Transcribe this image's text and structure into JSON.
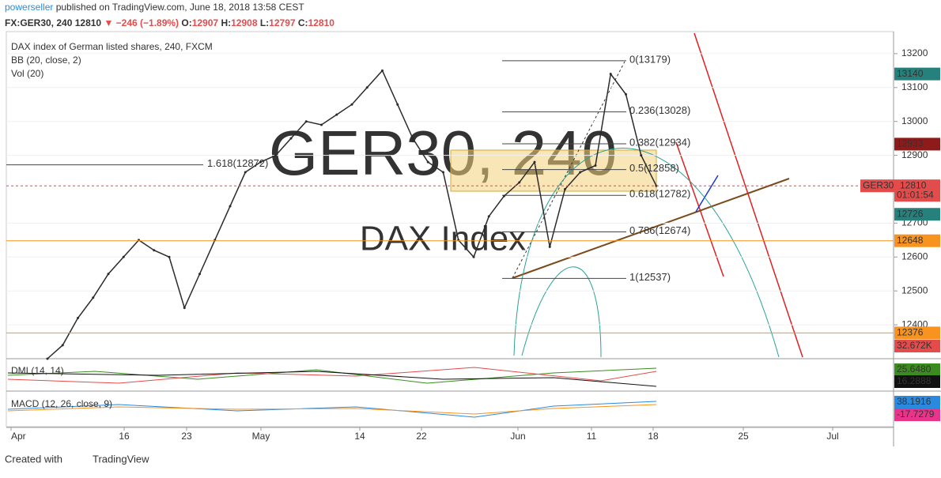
{
  "header": {
    "author": "powerseller",
    "published": "published on TradingView.com, June 18, 2018 13:58 CEST",
    "symbol": "FX:GER30, 240",
    "last": "12810",
    "change": "▼ −246 (−1.89%)",
    "ohlc": [
      {
        "key": "O:",
        "value": "12907"
      },
      {
        "key": "H:",
        "value": "12908"
      },
      {
        "key": "L:",
        "value": "12797"
      },
      {
        "key": "C:",
        "value": "12810"
      }
    ]
  },
  "legend": [
    "DAX index of German listed shares, 240, FXCM",
    "BB (20, close, 2)",
    "Vol (20)"
  ],
  "panes": [
    "DMI (14, 14)",
    "MACD (12, 26, close, 9)"
  ],
  "watermark": {
    "symbol": "GER30, 240",
    "name": "DAX Index"
  },
  "chart_data": {
    "type": "line",
    "color": "#2b2b2b",
    "ylim": [
      12300,
      13265
    ],
    "yticks": [
      13200,
      13100,
      13000,
      12900,
      12700,
      12600,
      12500,
      12400
    ],
    "values": [
      12300,
      12340,
      12420,
      12480,
      12550,
      12600,
      12650,
      12620,
      12600,
      12450,
      12550,
      12650,
      12750,
      12850,
      12880,
      12900,
      12950,
      13000,
      12990,
      13020,
      13050,
      13100,
      13150,
      13050,
      12950,
      12880,
      12850,
      12650,
      12600,
      12720,
      12780,
      12820,
      12880,
      12630,
      12800,
      12850,
      12870,
      13140,
      13080,
      12900,
      12810
    ],
    "x_labels": [
      "Apr",
      "16",
      "23",
      "May",
      "14",
      "22",
      "Jun",
      "11",
      "18",
      "25",
      "Jul"
    ],
    "fib": [
      {
        "label": "0(13179)",
        "value": 13179
      },
      {
        "label": "0.236(13028)",
        "value": 13028
      },
      {
        "label": "0.382(12934)",
        "value": 12934
      },
      {
        "label": "0.5(12858)",
        "value": 12858
      },
      {
        "label": "0.618(12782)",
        "value": 12782
      },
      {
        "label": "0.786(12674)",
        "value": 12674
      },
      {
        "label": "1(12537)",
        "value": 12537
      },
      {
        "label": "1.618(12872)",
        "value": 12872
      }
    ],
    "price_badges": [
      {
        "text": "13140",
        "value": 13140,
        "color": "#26817d",
        "line": "none"
      },
      {
        "text": "12933",
        "value": 12933,
        "color": "#8e1a1a",
        "line": "none"
      },
      {
        "text": "GER30",
        "value": 12810,
        "color": "#e44b4b",
        "line": "dashed",
        "label": "12810"
      },
      {
        "text": "01:01:54",
        "value": 12782,
        "color": "#e44b4b",
        "line": "none"
      },
      {
        "text": "12726",
        "value": 12726,
        "color": "#26817d",
        "line": "none"
      },
      {
        "text": "12648",
        "value": 12648,
        "color": "#f7931e",
        "line": "solid"
      },
      {
        "text": "12376",
        "value": 12376,
        "color": "#f7931e",
        "line": "solid"
      }
    ],
    "indicator_badges": [
      {
        "text": "32.672K",
        "color": "#e44b4b"
      },
      {
        "text": "25.6480",
        "color": "#3a8c1f"
      },
      {
        "text": "16.2888",
        "color": "#111111"
      },
      {
        "text": "38.1916",
        "color": "#2a8ae0"
      },
      {
        "text": "-17.7279",
        "color": "#e9348a"
      }
    ]
  },
  "footer": {
    "created": "Created with",
    "brand": "TradingView"
  }
}
